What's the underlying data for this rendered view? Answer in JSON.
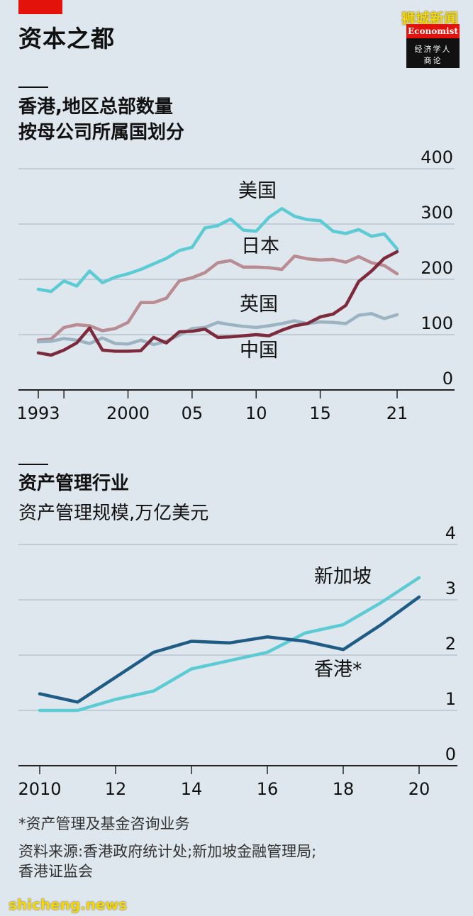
{
  "header": {
    "title": "资本之都",
    "watermark_top": "狮城新闻",
    "logo_en": "Economist",
    "logo_cn_line1": "经济学人",
    "logo_cn_line2": "商论"
  },
  "chart_data": [
    {
      "type": "line",
      "title": "香港,地区总部数量",
      "subtitle": "按母公司所属国划分",
      "xlabel": "",
      "ylabel": "",
      "xlim": [
        1993,
        2021
      ],
      "ylim": [
        0,
        400
      ],
      "xticks": [
        1993,
        1995,
        2000,
        2005,
        2010,
        2015,
        2021
      ],
      "xtick_labels": [
        "1993",
        "",
        "2000",
        "05",
        "10",
        "15",
        "21"
      ],
      "yticks": [
        0,
        100,
        200,
        300,
        400
      ],
      "ytick_labels": [
        "0",
        "100",
        "200",
        "300",
        "400"
      ],
      "grid": true,
      "x": [
        1993,
        1994,
        1995,
        1996,
        1997,
        1998,
        1999,
        2000,
        2001,
        2002,
        2003,
        2004,
        2005,
        2006,
        2007,
        2008,
        2009,
        2010,
        2011,
        2012,
        2013,
        2014,
        2015,
        2016,
        2017,
        2018,
        2019,
        2020,
        2021
      ],
      "series": [
        {
          "name": "美国",
          "color": "#5ccbd3",
          "values": [
            182,
            178,
            197,
            188,
            215,
            194,
            204,
            210,
            218,
            228,
            238,
            252,
            258,
            293,
            297,
            309,
            289,
            287,
            312,
            328,
            314,
            308,
            306,
            287,
            283,
            290,
            278,
            282,
            255
          ]
        },
        {
          "name": "日本",
          "color": "#b98c94",
          "values": [
            90,
            92,
            113,
            118,
            116,
            107,
            111,
            122,
            158,
            158,
            166,
            197,
            203,
            212,
            230,
            234,
            222,
            222,
            221,
            218,
            242,
            237,
            235,
            236,
            231,
            241,
            230,
            225,
            210
          ]
        },
        {
          "name": "英国",
          "color": "#9cb3c2",
          "values": [
            87,
            88,
            93,
            90,
            84,
            94,
            84,
            83,
            90,
            82,
            88,
            99,
            111,
            113,
            122,
            118,
            115,
            113,
            116,
            120,
            125,
            120,
            123,
            122,
            120,
            135,
            138,
            129,
            136
          ]
        },
        {
          "name": "中国",
          "color": "#7d2b3c",
          "values": [
            67,
            63,
            72,
            85,
            112,
            72,
            70,
            70,
            71,
            95,
            85,
            105,
            106,
            110,
            95,
            96,
            98,
            100,
            98,
            108,
            116,
            120,
            132,
            137,
            153,
            196,
            215,
            238,
            250
          ]
        }
      ],
      "labels": {
        "us": "美国",
        "jp": "日本",
        "uk": "英国",
        "cn": "中国"
      }
    },
    {
      "type": "line",
      "title": "资产管理行业",
      "subtitle": "资产管理规模,万亿美元",
      "xlabel": "",
      "ylabel": "",
      "xlim": [
        2010,
        2020
      ],
      "ylim": [
        0,
        4
      ],
      "xticks": [
        2010,
        2012,
        2014,
        2016,
        2018,
        2020
      ],
      "xtick_labels": [
        "2010",
        "12",
        "14",
        "16",
        "18",
        "20"
      ],
      "yticks": [
        0,
        1,
        2,
        3,
        4
      ],
      "ytick_labels": [
        "0",
        "1",
        "2",
        "3",
        "4"
      ],
      "grid": true,
      "x": [
        2010,
        2011,
        2012,
        2013,
        2014,
        2015,
        2016,
        2017,
        2018,
        2019,
        2020
      ],
      "series": [
        {
          "name": "新加坡",
          "color": "#5ccbd3",
          "values": [
            1.0,
            1.0,
            1.2,
            1.35,
            1.75,
            1.9,
            2.05,
            2.4,
            2.55,
            2.95,
            3.4
          ]
        },
        {
          "name": "香港*",
          "color": "#1f5c85",
          "values": [
            1.3,
            1.15,
            1.6,
            2.05,
            2.25,
            2.22,
            2.33,
            2.25,
            2.1,
            2.55,
            3.05
          ]
        }
      ],
      "labels": {
        "sg": "新加坡",
        "hk": "香港*"
      }
    }
  ],
  "footnotes": {
    "asterisk": "*资产管理及基金咨询业务",
    "source_line1": "资料来源:香港政府统计处;新加坡金融管理局;",
    "source_line2": "香港证监会"
  },
  "watermark_bottom": "shicheng.news"
}
